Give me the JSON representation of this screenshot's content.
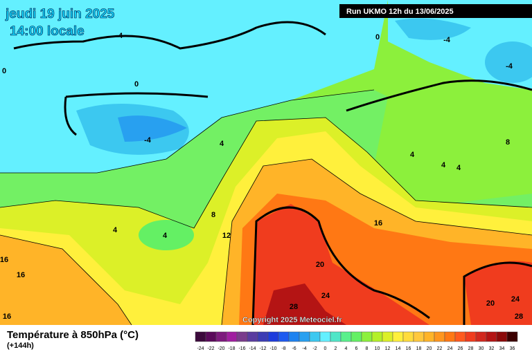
{
  "header": {
    "date": "jeudi 19 juin 2025",
    "time": "14:00 locale",
    "run": "Run UKMO 12h du 13/06/2025"
  },
  "map": {
    "copyright": "Copyright 2025 Meteociel.fr",
    "contour_labels": [
      4,
      0,
      -4,
      -4,
      0,
      0,
      -4,
      4,
      4,
      4,
      4,
      8,
      8,
      4,
      4,
      12,
      16,
      20,
      24,
      28,
      20,
      24,
      28,
      16,
      16,
      16
    ]
  },
  "footer": {
    "title": "Température à 850hPa (°C)",
    "lead": "(+144h)"
  },
  "legend": {
    "values": [
      -24,
      -22,
      -20,
      -18,
      -16,
      -14,
      -12,
      -10,
      -8,
      -6,
      -4,
      -2,
      0,
      2,
      4,
      6,
      8,
      10,
      12,
      14,
      16,
      18,
      20,
      22,
      24,
      26,
      28,
      30,
      32,
      34,
      36
    ],
    "colors": [
      "#3c0a3c",
      "#5a0a5a",
      "#7d1a7d",
      "#a01ea0",
      "#7a3c8c",
      "#5a3ca0",
      "#3c3cb4",
      "#1e3cdc",
      "#1e5af0",
      "#1e82f0",
      "#28a0f0",
      "#3cc8f0",
      "#64f0ff",
      "#50e6c8",
      "#5af08c",
      "#64f064",
      "#8cf03c",
      "#b4f028",
      "#dcf028",
      "#fff03c",
      "#ffdc3c",
      "#ffc83c",
      "#ffb428",
      "#ff961e",
      "#ff7814",
      "#ff5a1e",
      "#f03c1e",
      "#d2281e",
      "#b41414",
      "#8c0a0a",
      "#3c0000"
    ]
  }
}
